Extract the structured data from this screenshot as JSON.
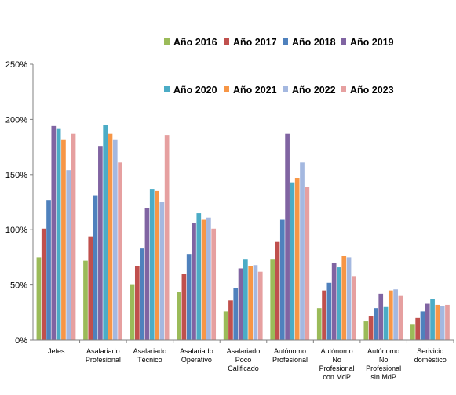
{
  "chart_data": {
    "type": "bar",
    "categories": [
      [
        "Jefes"
      ],
      [
        "Asalariado",
        "Profesional"
      ],
      [
        "Asalariado",
        "Técnico"
      ],
      [
        "Asalariado",
        "Operativo"
      ],
      [
        "Asalariado",
        "Poco",
        "Calificado"
      ],
      [
        "Autónomo",
        "Profesional"
      ],
      [
        "Autónomo",
        "No",
        "Profesional",
        "con MdP"
      ],
      [
        "Autónomo",
        "No",
        "Profesional",
        "sin MdP"
      ],
      [
        "Serivicio",
        "doméstico"
      ]
    ],
    "series": [
      {
        "name": "Año 2016",
        "color": "#9BBB59",
        "values": [
          75,
          72,
          50,
          44,
          26,
          73,
          29,
          17,
          14
        ]
      },
      {
        "name": "Año 2017",
        "color": "#C0504D",
        "values": [
          101,
          94,
          67,
          60,
          36,
          89,
          45,
          22,
          20
        ]
      },
      {
        "name": "Año 2018",
        "color": "#4F81BD",
        "values": [
          127,
          131,
          83,
          78,
          47,
          109,
          52,
          29,
          26
        ]
      },
      {
        "name": "Año 2019",
        "color": "#8064A2",
        "values": [
          194,
          176,
          120,
          106,
          65,
          187,
          70,
          42,
          33
        ]
      },
      {
        "name": "Año 2020",
        "color": "#4BACC6",
        "values": [
          192,
          195,
          137,
          115,
          73,
          143,
          66,
          30,
          37
        ]
      },
      {
        "name": "Año 2021",
        "color": "#F79646",
        "values": [
          182,
          187,
          135,
          109,
          67,
          147,
          76,
          45,
          32
        ]
      },
      {
        "name": "Año 2022",
        "color": "#A4B8E0",
        "values": [
          154,
          182,
          125,
          111,
          68,
          161,
          75,
          46,
          31
        ]
      },
      {
        "name": "Año 2023",
        "color": "#E6A0A0",
        "values": [
          187,
          161,
          186,
          101,
          62,
          139,
          58,
          40,
          32
        ]
      }
    ],
    "y_ticks": [
      "0%",
      "50%",
      "100%",
      "150%",
      "200%",
      "250%"
    ],
    "ylim": [
      0,
      250
    ],
    "grid": false,
    "legend_position": "top-right"
  }
}
